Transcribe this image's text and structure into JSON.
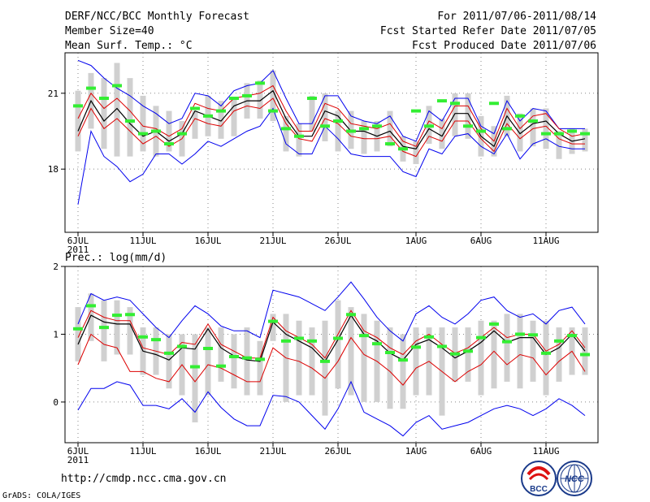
{
  "header": {
    "title": "DERF/NCC/BCC Monthly Forecast",
    "member_size": "Member Size=40",
    "variable": "Mean Surf. Temp.: °C",
    "period": "For 2011/07/06-2011/08/14",
    "started": "Fcst Started Refer Date 2011/07/05",
    "produced": "Fcst Produced Date 2011/07/06"
  },
  "footer": {
    "url": "http://cmdp.ncc.cma.gov.cn",
    "credit": "GrADS: COLA/IGES",
    "logo_bcc": "BCC",
    "logo_ncc": "NCC"
  },
  "colors": {
    "box": "#d0d0d0",
    "observed": "#33ee33",
    "envelope": "#0000ee",
    "spread": "#dd0000",
    "mean": "#000000",
    "grid": "#888888"
  },
  "chart_data": [
    {
      "type": "line",
      "title": "Mean Surf. Temp.: °C",
      "ylim": [
        15.5,
        22.6
      ],
      "yticks": [
        18,
        21
      ],
      "x": [
        1,
        2,
        3,
        4,
        5,
        6,
        7,
        8,
        9,
        10,
        11,
        12,
        13,
        14,
        15,
        16,
        17,
        18,
        19,
        20,
        21,
        22,
        23,
        24,
        25,
        26,
        27,
        28,
        29,
        30,
        31,
        32,
        33,
        34,
        35,
        36,
        37,
        38,
        39,
        40
      ],
      "xtick_labels": [
        {
          "x": 1,
          "label": "6JUL",
          "sub": "2011"
        },
        {
          "x": 6,
          "label": "11JUL"
        },
        {
          "x": 11,
          "label": "16JUL"
        },
        {
          "x": 16,
          "label": "21JUL"
        },
        {
          "x": 21,
          "label": "26JUL"
        },
        {
          "x": 27,
          "label": "1AUG"
        },
        {
          "x": 32,
          "label": "6AUG"
        },
        {
          "x": 37,
          "label": "11AUG"
        }
      ],
      "series": [
        {
          "name": "box_top",
          "values": [
            21.1,
            21.8,
            21.6,
            22.2,
            21.6,
            20.9,
            20.5,
            20.3,
            19.9,
            20.3,
            20.9,
            20.7,
            20.8,
            21.4,
            21.5,
            21.9,
            20.1,
            19.8,
            20.9,
            21.0,
            20.3,
            20.3,
            19.9,
            19.9,
            20.3,
            19.3,
            19.1,
            20.5,
            20.0,
            21.0,
            21.0,
            20.1,
            19.7,
            20.9,
            20.2,
            20.4,
            20.4,
            19.5,
            19.6,
            19.6
          ]
        },
        {
          "name": "box_bottom",
          "values": [
            18.7,
            19.6,
            18.8,
            18.5,
            18.5,
            18.7,
            18.5,
            18.7,
            18.5,
            19.2,
            19.3,
            19.2,
            19.3,
            20.0,
            20.0,
            19.9,
            18.7,
            18.5,
            19.5,
            19.1,
            18.7,
            18.8,
            18.6,
            18.7,
            18.9,
            18.3,
            18.2,
            19.0,
            18.8,
            19.3,
            19.2,
            18.5,
            18.5,
            19.3,
            18.7,
            18.9,
            18.8,
            18.4,
            18.6,
            18.7
          ]
        },
        {
          "name": "obs",
          "values": [
            20.5,
            21.2,
            20.8,
            21.3,
            19.9,
            19.4,
            19.5,
            19.0,
            19.4,
            20.4,
            20.1,
            20.3,
            20.8,
            20.9,
            21.4,
            20.3,
            19.6,
            19.3,
            20.8,
            19.7,
            19.9,
            19.5,
            19.6,
            19.7,
            19.0,
            18.8,
            20.3,
            19.7,
            20.7,
            20.6,
            19.7,
            19.5,
            20.6,
            19.6,
            20.1,
            19.9,
            19.4,
            19.4,
            19.5,
            19.4
          ]
        },
        {
          "name": "max",
          "values": [
            22.3,
            22.1,
            21.6,
            21.2,
            20.9,
            20.5,
            20.2,
            19.8,
            20.0,
            21.0,
            20.9,
            20.5,
            21.1,
            21.3,
            21.4,
            21.9,
            20.8,
            19.8,
            19.8,
            20.9,
            20.9,
            20.1,
            19.9,
            19.8,
            20.1,
            19.3,
            19.1,
            20.3,
            19.9,
            20.8,
            20.8,
            19.7,
            19.4,
            20.7,
            19.9,
            20.4,
            20.3,
            19.6,
            19.6,
            19.6
          ]
        },
        {
          "name": "upper",
          "values": [
            20.0,
            21.0,
            20.4,
            20.8,
            20.3,
            19.7,
            19.6,
            19.3,
            19.6,
            20.6,
            20.4,
            20.3,
            20.8,
            20.9,
            21.0,
            21.3,
            20.3,
            19.5,
            19.5,
            20.6,
            20.4,
            19.8,
            19.7,
            19.6,
            19.8,
            19.1,
            18.9,
            19.9,
            19.6,
            20.5,
            20.5,
            19.6,
            19.1,
            20.4,
            19.6,
            20.1,
            20.2,
            19.6,
            19.3,
            19.4
          ]
        },
        {
          "name": "mean",
          "values": [
            19.5,
            20.7,
            19.9,
            20.4,
            19.8,
            19.3,
            19.5,
            19.1,
            19.4,
            20.3,
            20.1,
            19.9,
            20.5,
            20.7,
            20.7,
            21.1,
            20.0,
            19.3,
            19.3,
            20.3,
            20.1,
            19.5,
            19.5,
            19.3,
            19.5,
            18.9,
            18.8,
            19.6,
            19.3,
            20.2,
            20.2,
            19.3,
            18.9,
            20.1,
            19.4,
            19.8,
            19.9,
            19.4,
            19.1,
            19.2
          ]
        },
        {
          "name": "lower",
          "values": [
            19.3,
            20.4,
            19.6,
            20.0,
            19.5,
            19.0,
            19.3,
            18.9,
            19.2,
            20.0,
            19.8,
            19.7,
            20.3,
            20.5,
            20.4,
            20.8,
            19.8,
            19.2,
            19.1,
            20.0,
            19.8,
            19.3,
            19.2,
            19.2,
            19.3,
            18.7,
            18.5,
            19.3,
            19.1,
            19.9,
            19.9,
            19.2,
            18.7,
            19.8,
            19.2,
            19.6,
            19.7,
            19.2,
            19.0,
            19.0
          ]
        },
        {
          "name": "min",
          "values": [
            16.6,
            19.5,
            18.5,
            18.1,
            17.5,
            17.8,
            18.6,
            18.6,
            18.2,
            18.6,
            19.1,
            18.9,
            19.2,
            19.5,
            19.7,
            20.4,
            19.0,
            18.6,
            18.6,
            19.7,
            19.2,
            18.6,
            18.5,
            18.5,
            18.5,
            17.9,
            17.7,
            18.8,
            18.6,
            19.3,
            19.4,
            18.9,
            18.6,
            19.4,
            18.4,
            19.0,
            19.2,
            18.9,
            18.8,
            18.8
          ]
        }
      ]
    },
    {
      "type": "line",
      "title": "Prec.: log(mm/d)",
      "ylim": [
        -0.6,
        2.0
      ],
      "yticks": [
        0,
        1,
        2
      ],
      "x": [
        1,
        2,
        3,
        4,
        5,
        6,
        7,
        8,
        9,
        10,
        11,
        12,
        13,
        14,
        15,
        16,
        17,
        18,
        19,
        20,
        21,
        22,
        23,
        24,
        25,
        26,
        27,
        28,
        29,
        30,
        31,
        32,
        33,
        34,
        35,
        36,
        37,
        38,
        39,
        40
      ],
      "xtick_labels": [
        {
          "x": 1,
          "label": "6JUL",
          "sub": "2011"
        },
        {
          "x": 6,
          "label": "11JUL"
        },
        {
          "x": 11,
          "label": "16JUL"
        },
        {
          "x": 16,
          "label": "21JUL"
        },
        {
          "x": 21,
          "label": "26JUL"
        },
        {
          "x": 27,
          "label": "1AUG"
        },
        {
          "x": 32,
          "label": "6AUG"
        },
        {
          "x": 37,
          "label": "11AUG"
        }
      ],
      "series": [
        {
          "name": "box_top",
          "values": [
            1.4,
            1.6,
            1.5,
            1.5,
            1.4,
            1.1,
            1.1,
            1.0,
            1.0,
            1.0,
            1.1,
            1.1,
            1.0,
            1.1,
            0.9,
            1.3,
            1.3,
            1.2,
            1.1,
            1.2,
            1.5,
            1.4,
            1.3,
            1.2,
            1.1,
            1.0,
            1.1,
            1.1,
            1.1,
            1.1,
            1.1,
            1.2,
            1.2,
            1.3,
            1.3,
            1.2,
            1.2,
            1.1,
            1.1,
            1.1
          ]
        },
        {
          "name": "box_bottom",
          "values": [
            0.6,
            0.9,
            0.6,
            0.7,
            0.7,
            0.4,
            0.4,
            0.2,
            0.1,
            -0.3,
            0.1,
            0.3,
            0.2,
            0.1,
            0.1,
            0.9,
            0.0,
            0.1,
            0.1,
            -0.2,
            0.2,
            0.1,
            0.0,
            0.0,
            -0.1,
            -0.1,
            0.1,
            0.1,
            -0.2,
            0.3,
            0.3,
            0.1,
            0.2,
            0.3,
            0.2,
            0.3,
            0.1,
            0.3,
            0.4,
            0.4
          ]
        },
        {
          "name": "obs",
          "values": [
            1.08,
            1.42,
            1.1,
            1.28,
            1.29,
            0.96,
            0.92,
            0.72,
            0.82,
            0.52,
            0.79,
            0.53,
            0.67,
            0.65,
            0.63,
            1.19,
            0.9,
            0.94,
            0.9,
            0.6,
            0.94,
            1.29,
            0.98,
            0.86,
            0.73,
            0.62,
            0.81,
            0.96,
            0.82,
            0.71,
            0.75,
            0.95,
            1.15,
            0.89,
            1.0,
            0.99,
            0.72,
            0.9,
            0.98,
            0.7
          ]
        },
        {
          "name": "max",
          "values": [
            1.15,
            1.6,
            1.5,
            1.55,
            1.5,
            1.3,
            1.1,
            0.95,
            1.2,
            1.42,
            1.3,
            1.12,
            1.05,
            1.05,
            0.95,
            1.65,
            1.6,
            1.55,
            1.45,
            1.35,
            1.55,
            1.77,
            1.52,
            1.25,
            1.05,
            0.9,
            1.3,
            1.42,
            1.25,
            1.15,
            1.3,
            1.5,
            1.55,
            1.35,
            1.25,
            1.3,
            1.15,
            1.35,
            1.4,
            1.15
          ]
        },
        {
          "name": "upper",
          "values": [
            0.95,
            1.35,
            1.25,
            1.2,
            1.2,
            0.8,
            0.75,
            0.7,
            0.88,
            0.85,
            1.15,
            0.85,
            0.75,
            0.65,
            0.65,
            1.25,
            1.05,
            0.95,
            0.85,
            0.65,
            1.0,
            1.35,
            1.05,
            0.95,
            0.8,
            0.7,
            0.9,
            1.0,
            0.85,
            0.72,
            0.8,
            0.95,
            1.1,
            0.95,
            1.0,
            1.0,
            0.75,
            0.85,
            1.05,
            0.8
          ]
        },
        {
          "name": "mean",
          "values": [
            0.85,
            1.28,
            1.18,
            1.15,
            1.15,
            0.75,
            0.7,
            0.62,
            0.8,
            0.78,
            1.08,
            0.8,
            0.68,
            0.62,
            0.6,
            1.18,
            1.0,
            0.9,
            0.8,
            0.6,
            0.92,
            1.28,
            1.0,
            0.9,
            0.72,
            0.62,
            0.85,
            0.92,
            0.8,
            0.65,
            0.75,
            0.88,
            1.05,
            0.88,
            0.95,
            0.95,
            0.7,
            0.8,
            1.0,
            0.75
          ]
        },
        {
          "name": "lower",
          "values": [
            0.55,
            1.0,
            0.85,
            0.8,
            0.45,
            0.45,
            0.35,
            0.3,
            0.55,
            0.3,
            0.55,
            0.5,
            0.4,
            0.3,
            0.3,
            0.8,
            0.65,
            0.6,
            0.5,
            0.35,
            0.6,
            0.95,
            0.7,
            0.6,
            0.45,
            0.25,
            0.5,
            0.6,
            0.45,
            0.3,
            0.45,
            0.55,
            0.75,
            0.55,
            0.7,
            0.65,
            0.4,
            0.6,
            0.75,
            0.45
          ]
        },
        {
          "name": "min",
          "values": [
            -0.12,
            0.2,
            0.2,
            0.3,
            0.25,
            -0.05,
            -0.05,
            -0.1,
            0.05,
            -0.15,
            0.15,
            -0.08,
            -0.25,
            -0.35,
            -0.35,
            0.1,
            0.08,
            0.0,
            -0.2,
            -0.4,
            -0.1,
            0.3,
            -0.15,
            -0.25,
            -0.35,
            -0.5,
            -0.3,
            -0.2,
            -0.4,
            -0.35,
            -0.3,
            -0.2,
            -0.1,
            -0.05,
            -0.1,
            -0.2,
            -0.1,
            0.05,
            -0.05,
            -0.2
          ]
        }
      ]
    }
  ]
}
